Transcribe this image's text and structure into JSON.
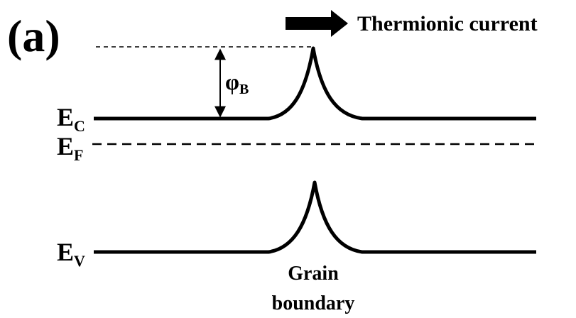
{
  "panel_label": "(a)",
  "current_label": "Thermionic current",
  "barrier": {
    "symbol": "φ",
    "sub": "B"
  },
  "bands": [
    {
      "symbol": "E",
      "sub": "C"
    },
    {
      "symbol": "E",
      "sub": "F"
    },
    {
      "symbol": "E",
      "sub": "V"
    }
  ],
  "grain_boundary": [
    "Grain",
    "boundary"
  ]
}
